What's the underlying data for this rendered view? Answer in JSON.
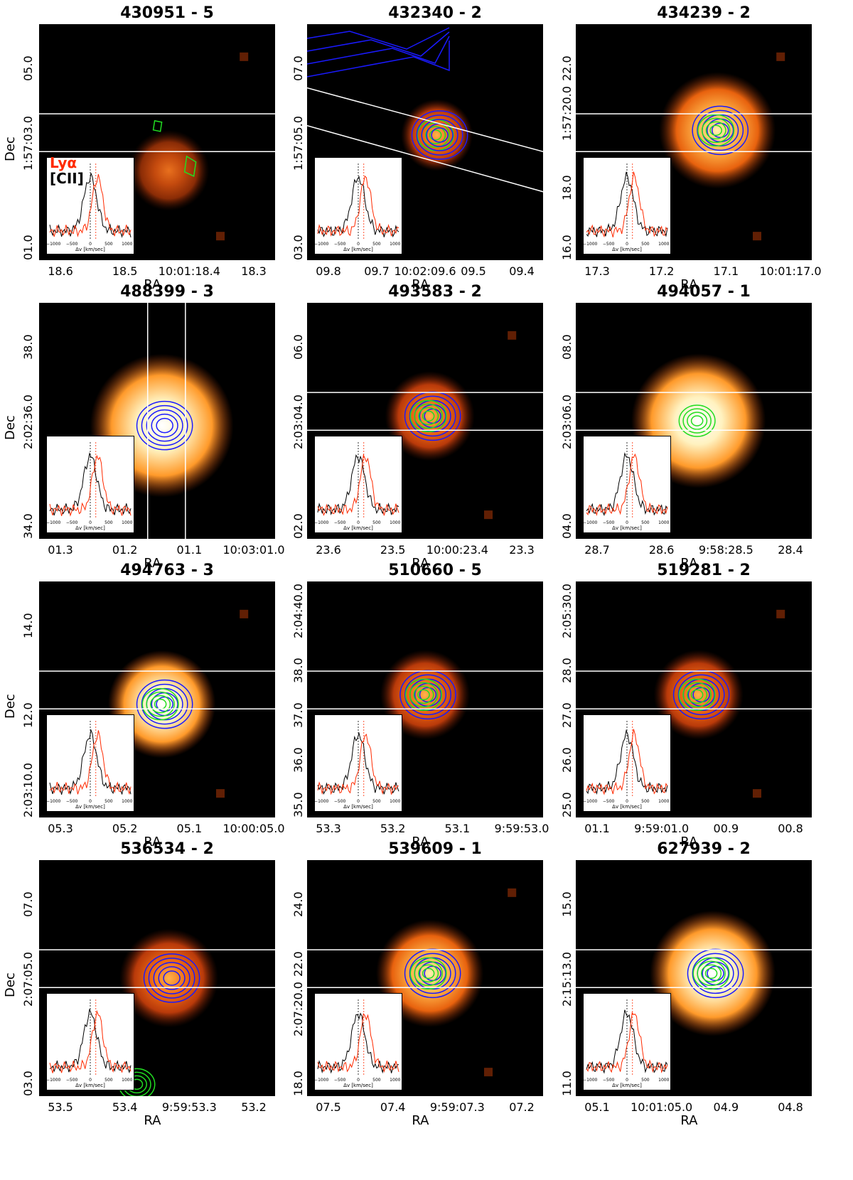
{
  "colors": {
    "lya": "#ff2a00",
    "cii": "#000000",
    "green": "#22dd22",
    "blue": "#1a1aff",
    "slit": "#ffffff"
  },
  "legend": {
    "lya": "Lyα",
    "cii": "[CII]"
  },
  "inset_axis": {
    "ticks": [
      "−1000",
      "−500",
      "0",
      "500",
      "1000"
    ],
    "label": "Δv [km/sec]"
  },
  "panels": [
    {
      "title": "430951 - 5",
      "xlabel": "RA",
      "ylabel": "Dec",
      "xticks": [
        "18.6",
        "18.5",
        "10:01:18.4",
        "18.3"
      ],
      "yticks": [
        "05.0",
        "1:57:03.0",
        "01.0"
      ],
      "slit": "h",
      "blob": [
        0.55,
        0.62,
        0.09,
        "dim"
      ],
      "contours": [
        "green-small"
      ],
      "show_legend": true
    },
    {
      "title": "432340 - 2",
      "xlabel": "RA",
      "ylabel": "",
      "xticks": [
        "09.8",
        "09.7",
        "10:02:09.6",
        "09.5",
        "09.4"
      ],
      "yticks": [
        "07.0",
        "1:57:05.0",
        "03.0"
      ],
      "slit": "diag",
      "blob": [
        0.55,
        0.47,
        0.08,
        "med"
      ],
      "contours": [
        "blue-big",
        "green",
        "blue"
      ],
      "show_legend": false
    },
    {
      "title": "434239 - 2",
      "xlabel": "RA",
      "ylabel": "",
      "xticks": [
        "17.3",
        "17.2",
        "17.1",
        "10:01:17.0"
      ],
      "yticks": [
        "22.0",
        "1:57:20.0",
        "18.0",
        "16.0"
      ],
      "slit": "h",
      "blob": [
        0.6,
        0.45,
        0.13,
        "bright"
      ],
      "contours": [
        "blue",
        "green"
      ],
      "show_legend": false
    },
    {
      "title": "488399 - 3",
      "xlabel": "RA",
      "ylabel": "Dec",
      "xticks": [
        "01.3",
        "01.2",
        "01.1",
        "10:03:01.0"
      ],
      "yticks": [
        "38.0",
        "2:02:36.0",
        "34.0"
      ],
      "slit": "v",
      "blob": [
        0.52,
        0.52,
        0.16,
        "white"
      ],
      "contours": [
        "blue"
      ],
      "show_legend": false
    },
    {
      "title": "493583 - 2",
      "xlabel": "RA",
      "ylabel": "",
      "xticks": [
        "23.6",
        "23.5",
        "10:00:23.4",
        "23.3"
      ],
      "yticks": [
        "06.0",
        "2:03:04.0",
        "02.0"
      ],
      "slit": "h",
      "blob": [
        0.52,
        0.48,
        0.1,
        "med"
      ],
      "contours": [
        "blue",
        "green"
      ],
      "show_legend": false
    },
    {
      "title": "494057 - 1",
      "xlabel": "RA",
      "ylabel": "",
      "xticks": [
        "28.7",
        "28.6",
        "9:58:28.5",
        "28.4"
      ],
      "yticks": [
        "08.0",
        "2:03:06.0",
        "04.0"
      ],
      "slit": "h",
      "blob": [
        0.52,
        0.5,
        0.15,
        "white"
      ],
      "contours": [
        "green"
      ],
      "show_legend": false
    },
    {
      "title": "494763 - 3",
      "xlabel": "RA",
      "ylabel": "Dec",
      "xticks": [
        "05.3",
        "05.2",
        "05.1",
        "10:00:05.0"
      ],
      "yticks": [
        "14.0",
        "12.0",
        "2:03:10.0"
      ],
      "slit": "h",
      "blob": [
        0.52,
        0.52,
        0.12,
        "white"
      ],
      "contours": [
        "blue",
        "green"
      ],
      "show_legend": false
    },
    {
      "title": "510660 - 5",
      "xlabel": "RA",
      "ylabel": "",
      "xticks": [
        "53.3",
        "53.2",
        "53.1",
        "9:59:53.0"
      ],
      "yticks": [
        "2:04:40.0",
        "38.0",
        "37.0",
        "36.0",
        "35.0"
      ],
      "slit": "h",
      "blob": [
        0.5,
        0.48,
        0.1,
        "med"
      ],
      "contours": [
        "blue",
        "green"
      ],
      "show_legend": false
    },
    {
      "title": "519281 - 2",
      "xlabel": "RA",
      "ylabel": "",
      "xticks": [
        "01.1",
        "9:59:01.0",
        "00.9",
        "00.8"
      ],
      "yticks": [
        "2:05:30.0",
        "28.0",
        "27.0",
        "26.0",
        "25.0"
      ],
      "slit": "h",
      "blob": [
        0.52,
        0.48,
        0.1,
        "med"
      ],
      "contours": [
        "blue",
        "green"
      ],
      "show_legend": false
    },
    {
      "title": "536534 - 2",
      "xlabel": "RA",
      "ylabel": "Dec",
      "xticks": [
        "53.5",
        "53.4",
        "9:59:53.3",
        "53.2"
      ],
      "yticks": [
        "07.0",
        "2:07:05.0",
        "03.0"
      ],
      "slit": "h",
      "blob": [
        0.55,
        0.5,
        0.11,
        "med"
      ],
      "contours": [
        "blue",
        "green-bottom"
      ],
      "show_legend": false
    },
    {
      "title": "539609 - 1",
      "xlabel": "RA",
      "ylabel": "",
      "xticks": [
        "07.5",
        "07.4",
        "9:59:07.3",
        "07.2"
      ],
      "yticks": [
        "24.0",
        "22.0",
        "2:07:20.0",
        "18.0"
      ],
      "slit": "h",
      "blob": [
        0.52,
        0.48,
        0.12,
        "bright"
      ],
      "contours": [
        "blue",
        "green"
      ],
      "show_legend": false
    },
    {
      "title": "627939 - 2",
      "xlabel": "RA",
      "ylabel": "",
      "xticks": [
        "05.1",
        "10:01:05.0",
        "04.9",
        "04.8"
      ],
      "yticks": [
        "15.0",
        "2:15:13.0",
        "11.0"
      ],
      "slit": "h",
      "blob": [
        0.58,
        0.48,
        0.14,
        "white"
      ],
      "contours": [
        "blue",
        "green"
      ],
      "show_legend": false
    }
  ]
}
